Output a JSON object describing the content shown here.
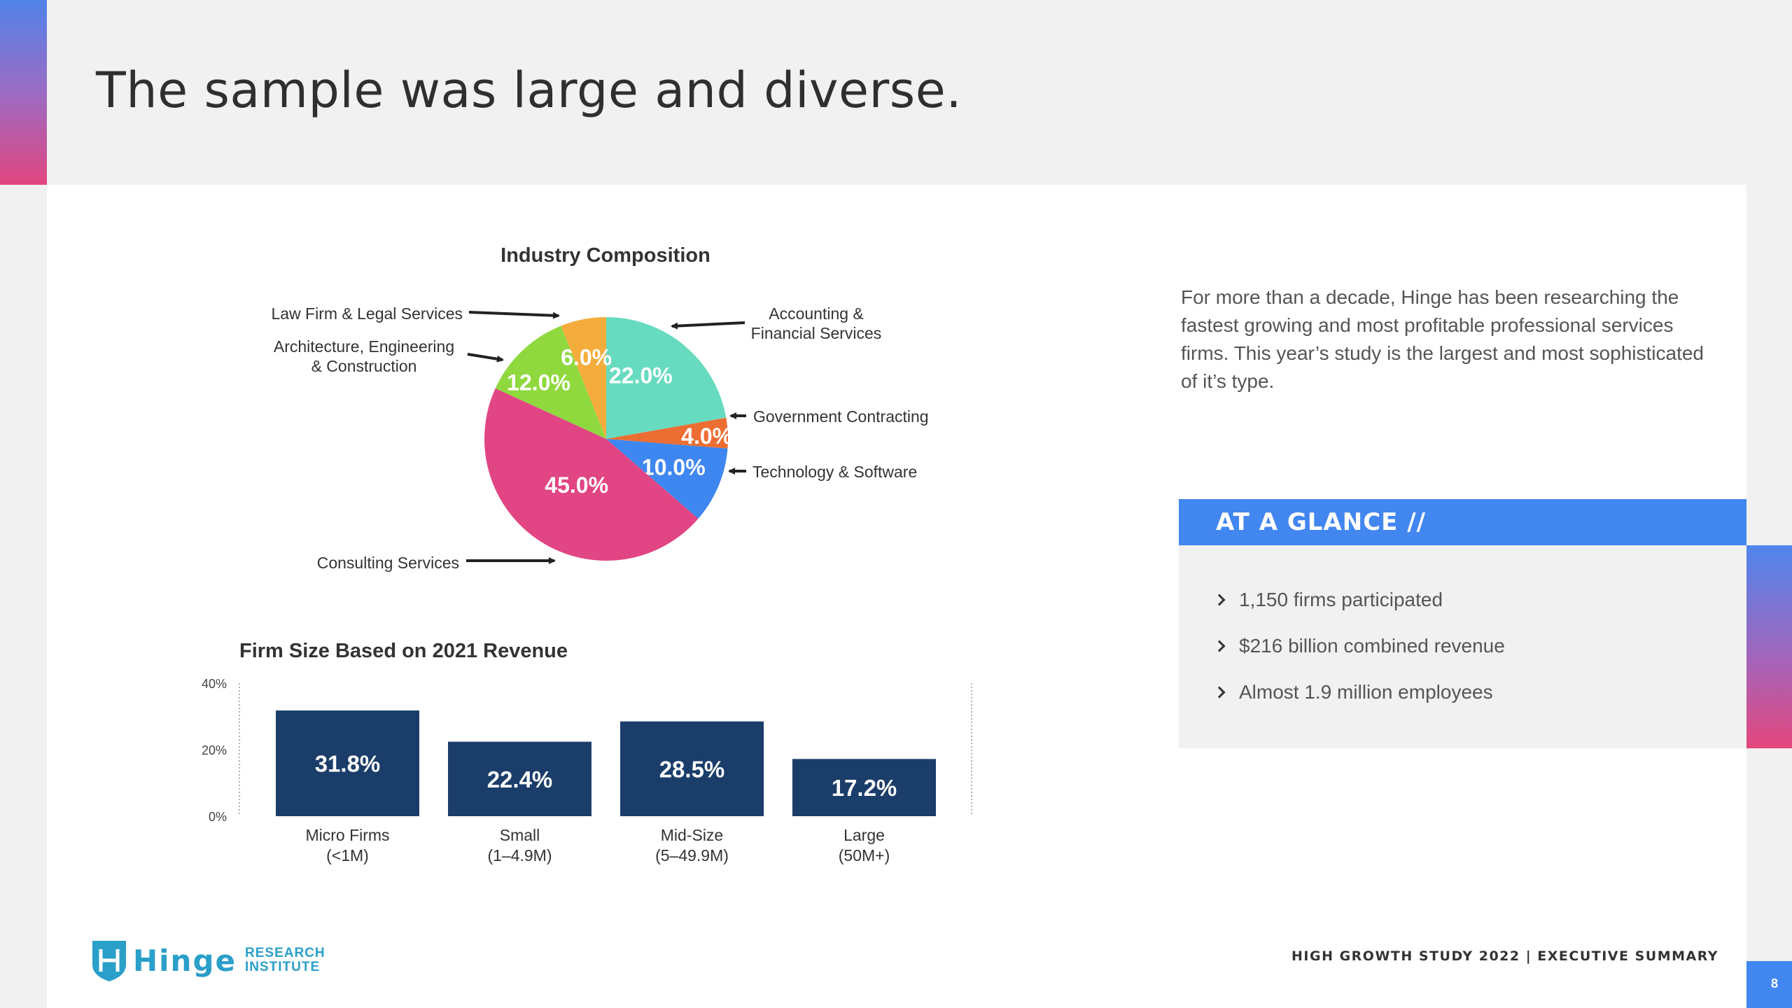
{
  "page": {
    "title": "The sample was large and diverse.",
    "intro": "For more than a decade, Hinge has been researching the fastest growing and most profitable professional services firms. This year’s study is the largest and most sophisticated of it’s type.",
    "page_number": "8",
    "footer": "HIGH GROWTH STUDY 2022   |   EXECUTIVE SUMMARY"
  },
  "glance": {
    "title": "AT A GLANCE  //",
    "items": [
      "1,150 firms participated",
      "$216 billion combined revenue",
      "Almost 1.9 million employees"
    ]
  },
  "logo": {
    "word": "Hinge",
    "line1": "RESEARCH",
    "line2": "INSTITUTE"
  },
  "colors": {
    "accent_blue": "#4286f0",
    "accent_pink": "#e2467f",
    "bar_navy": "#1b3d6a"
  },
  "chart_data": [
    {
      "type": "pie",
      "title": "Industry Composition",
      "slices": [
        {
          "label": "Accounting & Financial Services",
          "value": 22.0,
          "display": "22.0%",
          "color": "#67dbbf"
        },
        {
          "label": "Government Contracting",
          "value": 4.0,
          "display": "4.0%",
          "color": "#ec6e33"
        },
        {
          "label": "Technology & Software",
          "value": 10.0,
          "display": "10.0%",
          "color": "#3f87f0"
        },
        {
          "label": "Consulting Services",
          "value": 45.0,
          "display": "45.0%",
          "color": "#e14584"
        },
        {
          "label": "Architecture, Engineering & Construction",
          "value": 12.0,
          "display": "12.0%",
          "color": "#8fd93f"
        },
        {
          "label": "Law Firm & Legal Services",
          "value": 6.0,
          "display": "6.0%",
          "color": "#f4ad3d"
        }
      ]
    },
    {
      "type": "bar",
      "title": "Firm Size Based on 2021 Revenue",
      "categories": [
        "Micro Firms (<1M)",
        "Small (1–4.9M)",
        "Mid-Size (5–49.9M)",
        "Large (50M+)"
      ],
      "category_lines": [
        [
          "Micro Firms",
          "(<1M)"
        ],
        [
          "Small",
          "(1–4.9M)"
        ],
        [
          "Mid-Size",
          "(5–49.9M)"
        ],
        [
          "Large",
          "(50M+)"
        ]
      ],
      "values": [
        31.8,
        22.4,
        28.5,
        17.2
      ],
      "value_labels": [
        "31.8%",
        "22.4%",
        "28.5%",
        "17.2%"
      ],
      "yticks": [
        "0%",
        "20%",
        "40%"
      ],
      "ylim": [
        0,
        40
      ],
      "color": "#1b3d6a"
    }
  ]
}
